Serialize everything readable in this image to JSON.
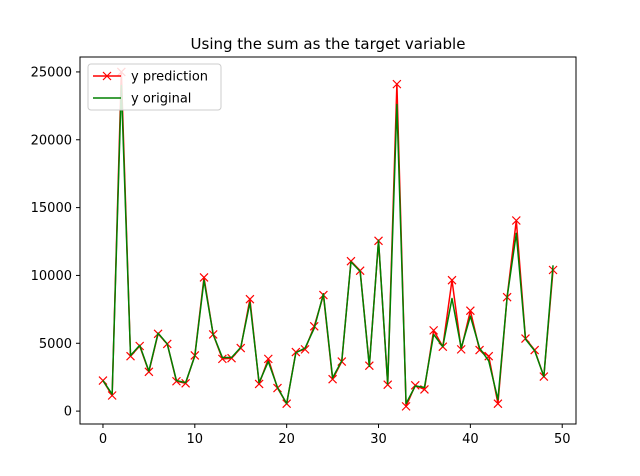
{
  "chart_data": {
    "type": "line",
    "title": "Using the sum as the target variable",
    "xlabel": "",
    "ylabel": "",
    "xlim": [
      -2.5,
      51.5
    ],
    "ylim": [
      -950,
      26100
    ],
    "xticks": [
      0,
      10,
      20,
      30,
      40,
      50
    ],
    "yticks": [
      0,
      5000,
      10000,
      15000,
      20000,
      25000
    ],
    "xtick_labels": [
      "0",
      "10",
      "20",
      "30",
      "40",
      "50"
    ],
    "ytick_labels": [
      "0",
      "5000",
      "10000",
      "15000",
      "20000",
      "25000"
    ],
    "grid": false,
    "legend_position": "upper-left",
    "x": [
      0,
      1,
      2,
      3,
      4,
      5,
      6,
      7,
      8,
      9,
      10,
      11,
      12,
      13,
      14,
      15,
      16,
      17,
      18,
      19,
      20,
      21,
      22,
      23,
      24,
      25,
      26,
      27,
      28,
      29,
      30,
      31,
      32,
      33,
      34,
      35,
      36,
      37,
      38,
      39,
      40,
      41,
      42,
      43,
      44,
      45,
      46,
      47,
      48,
      49
    ],
    "series": [
      {
        "name": "y prediction",
        "color": "#ff0000",
        "marker": "x",
        "values": [
          2250,
          1150,
          25000,
          4050,
          4800,
          2900,
          5700,
          4950,
          2200,
          2050,
          4100,
          9850,
          5650,
          3850,
          3900,
          4650,
          8250,
          2000,
          3850,
          1700,
          550,
          4350,
          4550,
          6250,
          8550,
          2350,
          3650,
          11050,
          10350,
          3350,
          12550,
          1950,
          24100,
          350,
          1900,
          1600,
          5950,
          4750,
          9650,
          4550,
          7400,
          4500,
          4050,
          550,
          8400,
          14050,
          5350,
          4500,
          2550,
          10400
        ]
      },
      {
        "name": "y original",
        "color": "#008000",
        "marker": "",
        "values": [
          2250,
          1250,
          24000,
          4100,
          4850,
          2950,
          5750,
          4950,
          2250,
          2100,
          4050,
          9650,
          5650,
          3950,
          3950,
          4700,
          8000,
          2100,
          3650,
          1750,
          550,
          4300,
          4650,
          6100,
          8650,
          2450,
          3700,
          11000,
          10300,
          3300,
          12600,
          2000,
          22600,
          550,
          1850,
          1750,
          5650,
          4750,
          8300,
          4650,
          7000,
          4650,
          3700,
          850,
          8400,
          13100,
          5300,
          4450,
          2550,
          10750
        ]
      }
    ]
  }
}
